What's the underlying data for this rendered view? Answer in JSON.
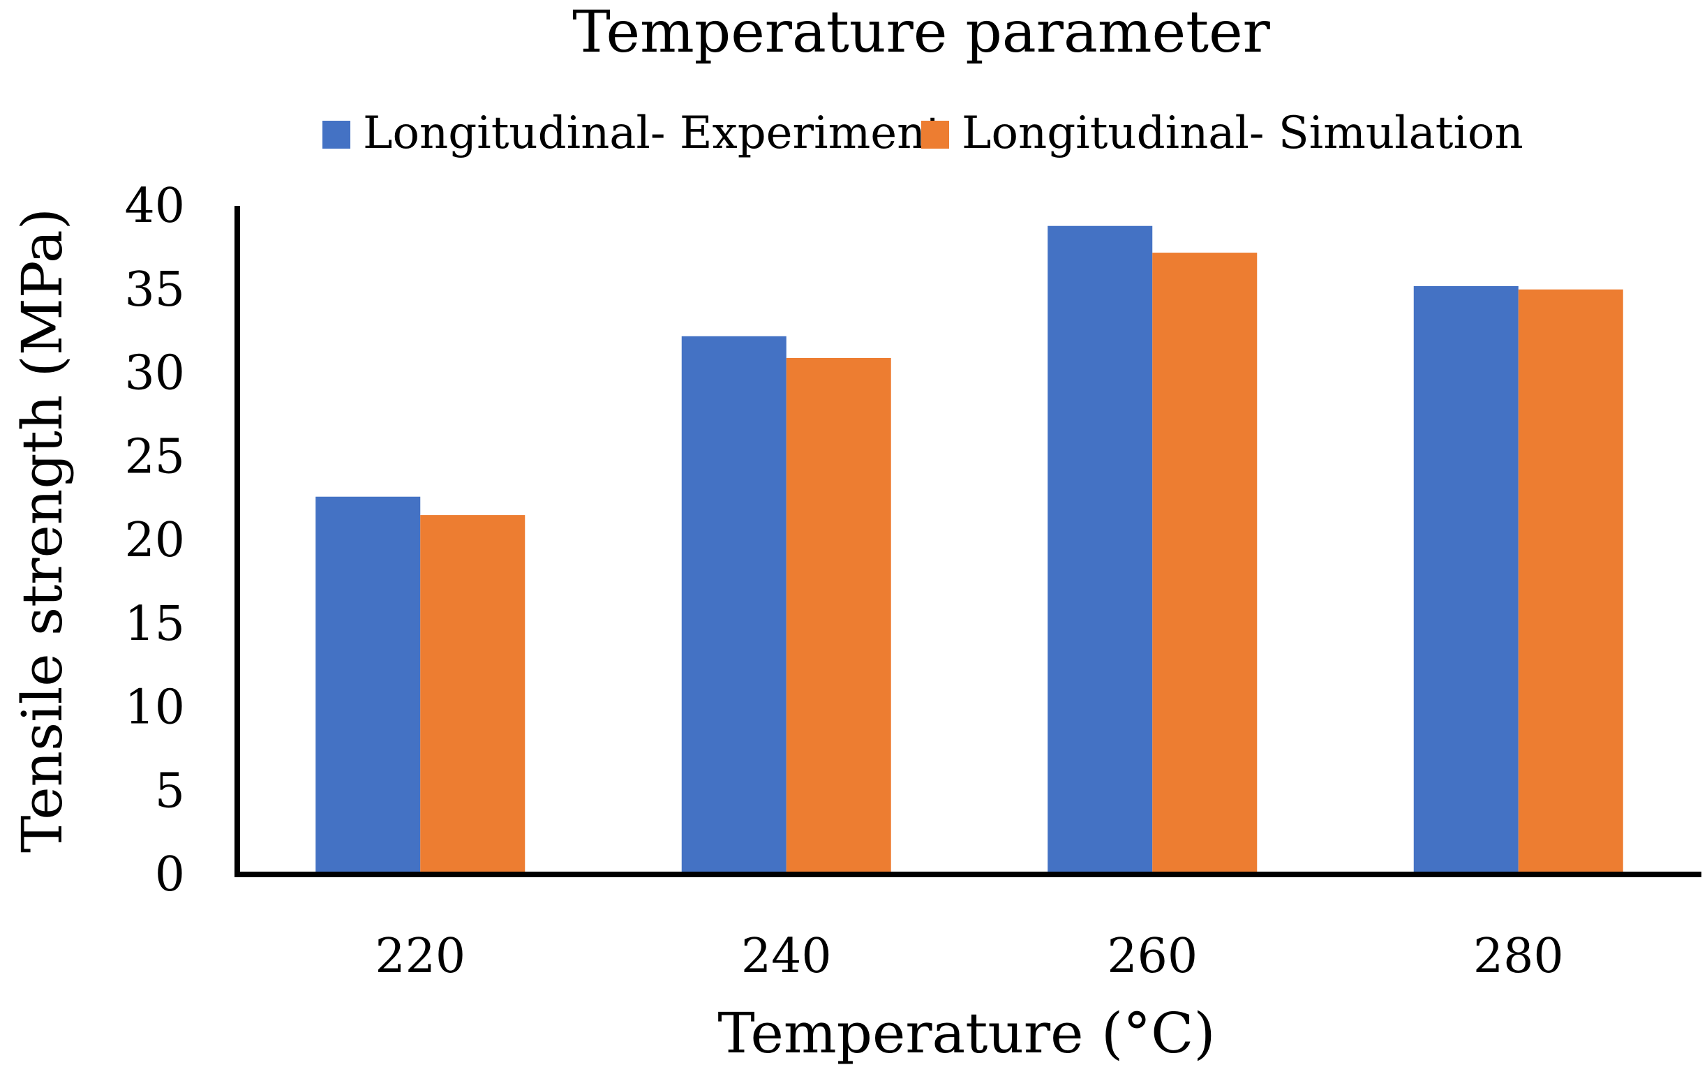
{
  "chart_data": {
    "type": "bar",
    "title": "Temperature parameter",
    "xlabel": "Temperature (°C)",
    "ylabel": "Tensile strength (MPa)",
    "categories": [
      "220",
      "240",
      "260",
      "280"
    ],
    "series": [
      {
        "name": "Longitudinal- Experiment",
        "color": "#4472C4",
        "values": [
          22.6,
          32.2,
          38.8,
          35.2
        ]
      },
      {
        "name": "Longitudinal- Simulation",
        "color": "#ED7D31",
        "values": [
          21.5,
          30.9,
          37.2,
          35.0
        ]
      }
    ],
    "ylim": [
      0,
      40
    ],
    "yticks": [
      "0",
      "5",
      "10",
      "15",
      "20",
      "25",
      "30",
      "35",
      "40"
    ],
    "grid": false,
    "legend_position": "top"
  }
}
